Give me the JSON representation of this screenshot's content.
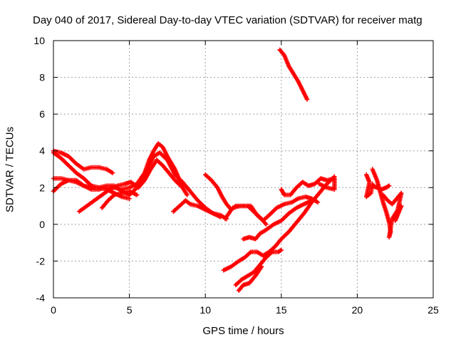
{
  "chart_data": {
    "type": "scatter",
    "title": "Day 040 of 2017, Sidereal Day-to-day VTEC variation (SDTVAR) for receiver matg",
    "xlabel": "GPS time / hours",
    "ylabel": "SDTVAR / TECUs",
    "xlim": [
      0,
      25
    ],
    "ylim": [
      -4,
      10
    ],
    "xticks": [
      "0",
      "5",
      "10",
      "15",
      "20",
      "25"
    ],
    "yticks": [
      "-4",
      "-2",
      "0",
      "2",
      "4",
      "6",
      "8",
      "10"
    ],
    "grid": true,
    "marker": "+",
    "color": "#ff0000",
    "series": [
      {
        "points": [
          [
            0.0,
            4.0
          ],
          [
            0.5,
            3.9
          ],
          [
            1.0,
            3.7
          ],
          [
            1.5,
            3.3
          ],
          [
            2.0,
            3.0
          ],
          [
            2.5,
            3.1
          ],
          [
            3.0,
            3.1
          ],
          [
            3.5,
            3.0
          ],
          [
            3.9,
            2.8
          ]
        ]
      },
      {
        "points": [
          [
            0.0,
            3.9
          ],
          [
            0.5,
            3.6
          ],
          [
            1.0,
            3.2
          ],
          [
            1.5,
            2.8
          ],
          [
            2.0,
            2.5
          ],
          [
            2.5,
            2.1
          ],
          [
            3.0,
            2.0
          ],
          [
            3.5,
            1.9
          ],
          [
            4.0,
            1.7
          ],
          [
            4.5,
            1.5
          ],
          [
            5.0,
            1.4
          ]
        ]
      },
      {
        "points": [
          [
            0.0,
            2.5
          ],
          [
            0.5,
            2.5
          ],
          [
            1.0,
            2.4
          ],
          [
            1.5,
            2.3
          ],
          [
            2.0,
            2.1
          ],
          [
            2.5,
            1.9
          ],
          [
            3.0,
            1.9
          ],
          [
            3.5,
            2.0
          ],
          [
            4.0,
            2.0
          ],
          [
            4.5,
            1.9
          ],
          [
            5.0,
            2.0
          ],
          [
            5.5,
            2.2
          ],
          [
            6.0,
            2.8
          ],
          [
            6.3,
            3.5
          ],
          [
            6.6,
            4.0
          ],
          [
            6.9,
            4.4
          ],
          [
            7.2,
            4.2
          ],
          [
            7.5,
            3.7
          ],
          [
            8.0,
            3.0
          ],
          [
            8.3,
            2.4
          ],
          [
            8.5,
            2.1
          ]
        ]
      },
      {
        "points": [
          [
            0.0,
            1.8
          ],
          [
            0.5,
            2.2
          ],
          [
            1.0,
            2.4
          ],
          [
            1.5,
            2.4
          ],
          [
            2.0,
            2.1
          ],
          [
            2.5,
            2.0
          ],
          [
            3.0,
            2.0
          ],
          [
            3.5,
            2.1
          ],
          [
            4.0,
            2.1
          ],
          [
            4.5,
            1.8
          ],
          [
            5.0,
            1.6
          ],
          [
            5.5,
            2.0
          ],
          [
            6.0,
            2.6
          ],
          [
            6.3,
            3.2
          ],
          [
            6.6,
            3.7
          ],
          [
            7.0,
            3.9
          ],
          [
            7.5,
            3.5
          ],
          [
            8.0,
            2.7
          ],
          [
            8.5,
            2.3
          ],
          [
            9.0,
            1.8
          ],
          [
            9.5,
            1.3
          ],
          [
            10.0,
            0.9
          ],
          [
            10.5,
            0.6
          ],
          [
            11.0,
            0.4
          ]
        ]
      },
      {
        "points": [
          [
            1.7,
            0.7
          ],
          [
            2.2,
            1.0
          ],
          [
            2.7,
            1.3
          ],
          [
            3.2,
            1.6
          ],
          [
            3.7,
            1.9
          ],
          [
            4.2,
            2.1
          ],
          [
            4.7,
            2.2
          ],
          [
            5.1,
            2.3
          ],
          [
            5.6,
            2.0
          ],
          [
            6.0,
            2.4
          ],
          [
            6.4,
            3.0
          ],
          [
            6.8,
            3.5
          ],
          [
            7.2,
            3.2
          ],
          [
            7.6,
            2.8
          ],
          [
            8.0,
            2.4
          ],
          [
            8.5,
            2.0
          ],
          [
            8.8,
            1.6
          ]
        ]
      },
      {
        "points": [
          [
            3.2,
            0.9
          ],
          [
            3.6,
            1.3
          ],
          [
            4.0,
            1.6
          ],
          [
            4.5,
            1.7
          ],
          [
            5.0,
            1.8
          ],
          [
            5.5,
            1.6
          ]
        ]
      },
      {
        "points": [
          [
            7.9,
            0.7
          ],
          [
            8.3,
            1.0
          ],
          [
            8.7,
            1.3
          ],
          [
            9.0,
            1.1
          ],
          [
            9.5,
            1.0
          ],
          [
            10.0,
            0.8
          ],
          [
            10.5,
            0.6
          ],
          [
            11.0,
            0.5
          ],
          [
            11.4,
            0.3
          ]
        ]
      },
      {
        "points": [
          [
            10.0,
            2.7
          ],
          [
            10.4,
            2.4
          ],
          [
            10.8,
            2.0
          ],
          [
            11.1,
            1.5
          ],
          [
            11.4,
            1.1
          ],
          [
            11.7,
            0.8
          ],
          [
            12.0,
            1.0
          ],
          [
            12.5,
            1.0
          ],
          [
            13.0,
            1.0
          ],
          [
            13.4,
            0.5
          ],
          [
            13.8,
            0.2
          ],
          [
            14.2,
            0.5
          ],
          [
            14.7,
            0.9
          ],
          [
            15.2,
            1.1
          ],
          [
            15.7,
            1.2
          ],
          [
            16.1,
            1.4
          ],
          [
            16.6,
            1.5
          ],
          [
            17.0,
            1.4
          ],
          [
            17.4,
            1.2
          ]
        ]
      },
      {
        "points": [
          [
            11.3,
            0.3
          ],
          [
            11.8,
            0.9
          ],
          [
            12.3,
            1.0
          ],
          [
            12.8,
            1.0
          ],
          [
            13.3,
            0.6
          ],
          [
            13.7,
            0.3
          ],
          [
            14.0,
            0.0
          ]
        ]
      },
      {
        "points": [
          [
            15.0,
            1.9
          ],
          [
            15.2,
            1.6
          ],
          [
            15.6,
            1.6
          ],
          [
            16.0,
            2.0
          ],
          [
            16.4,
            2.3
          ],
          [
            16.8,
            2.1
          ],
          [
            17.2,
            2.2
          ],
          [
            17.6,
            2.5
          ],
          [
            18.0,
            2.4
          ],
          [
            18.5,
            2.5
          ],
          [
            18.5,
            1.9
          ],
          [
            18.0,
            2.0
          ],
          [
            17.5,
            2.2
          ]
        ]
      },
      {
        "points": [
          [
            11.2,
            -2.5
          ],
          [
            11.7,
            -2.3
          ],
          [
            12.2,
            -2.0
          ],
          [
            12.6,
            -1.8
          ],
          [
            13.0,
            -1.5
          ],
          [
            13.4,
            -1.5
          ],
          [
            13.8,
            -1.7
          ],
          [
            14.2,
            -1.5
          ],
          [
            14.6,
            -1.2
          ],
          [
            15.0,
            -0.8
          ],
          [
            15.5,
            -0.4
          ],
          [
            16.0,
            0.1
          ],
          [
            16.5,
            0.6
          ],
          [
            17.0,
            1.2
          ],
          [
            17.5,
            1.7
          ],
          [
            18.0,
            2.2
          ],
          [
            18.5,
            2.6
          ]
        ]
      },
      {
        "points": [
          [
            12.0,
            -3.3
          ],
          [
            12.4,
            -3.0
          ],
          [
            12.8,
            -2.8
          ],
          [
            13.2,
            -2.6
          ],
          [
            13.6,
            -2.2
          ],
          [
            14.0,
            -1.8
          ],
          [
            14.4,
            -1.5
          ],
          [
            14.8,
            -1.5
          ],
          [
            15.0,
            -1.4
          ]
        ]
      },
      {
        "points": [
          [
            12.2,
            -3.6
          ],
          [
            12.5,
            -3.3
          ],
          [
            12.9,
            -3.2
          ],
          [
            13.3,
            -2.8
          ],
          [
            13.7,
            -2.3
          ]
        ]
      },
      {
        "points": [
          [
            12.5,
            -0.8
          ],
          [
            12.9,
            -0.7
          ],
          [
            13.3,
            -0.8
          ],
          [
            13.6,
            -0.5
          ],
          [
            14.0,
            -0.3
          ],
          [
            14.5,
            0.0
          ],
          [
            15.0,
            0.2
          ],
          [
            15.5,
            0.6
          ],
          [
            16.0,
            0.9
          ],
          [
            16.5,
            1.1
          ],
          [
            17.0,
            1.3
          ]
        ]
      },
      {
        "points": [
          [
            14.9,
            9.5
          ],
          [
            15.2,
            9.2
          ],
          [
            15.5,
            8.6
          ],
          [
            15.8,
            8.2
          ],
          [
            16.1,
            7.8
          ],
          [
            16.4,
            7.3
          ],
          [
            16.7,
            6.8
          ]
        ]
      },
      {
        "points": [
          [
            20.6,
            2.7
          ],
          [
            20.8,
            2.3
          ],
          [
            20.7,
            1.9
          ],
          [
            20.6,
            1.5
          ],
          [
            20.9,
            1.7
          ],
          [
            21.0,
            2.2
          ]
        ]
      },
      {
        "points": [
          [
            21.0,
            3.0
          ],
          [
            21.3,
            2.4
          ],
          [
            21.5,
            1.8
          ],
          [
            21.7,
            1.2
          ],
          [
            21.9,
            0.7
          ],
          [
            22.1,
            0.1
          ],
          [
            22.2,
            -0.4
          ],
          [
            22.1,
            -0.7
          ],
          [
            22.3,
            0.3
          ],
          [
            22.6,
            0.7
          ],
          [
            22.9,
            1.0
          ],
          [
            22.7,
            0.6
          ],
          [
            22.5,
            0.2
          ],
          [
            22.8,
            1.3
          ],
          [
            22.9,
            1.7
          ],
          [
            22.6,
            1.4
          ],
          [
            22.3,
            1.1
          ],
          [
            22.0,
            1.3
          ],
          [
            21.7,
            1.6
          ]
        ]
      },
      {
        "points": [
          [
            21.0,
            2.1
          ],
          [
            21.3,
            2.0
          ],
          [
            21.6,
            1.9
          ],
          [
            21.9,
            2.0
          ],
          [
            22.1,
            2.1
          ]
        ]
      }
    ]
  }
}
